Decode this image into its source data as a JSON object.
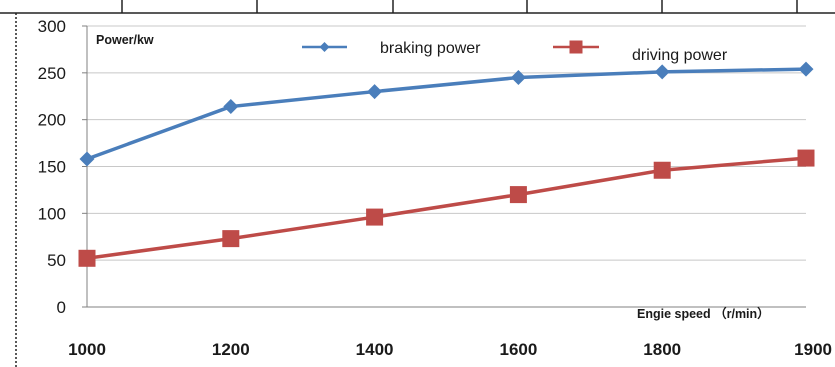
{
  "chart_data": {
    "type": "line",
    "categories": [
      "1000",
      "1200",
      "1400",
      "1600",
      "1800",
      "1900"
    ],
    "series": [
      {
        "name": "braking power",
        "values": [
          158,
          214,
          230,
          245,
          251,
          254
        ],
        "color": "#4a7ebb",
        "marker": "diamond"
      },
      {
        "name": "driving power",
        "values": [
          52,
          73,
          96,
          120,
          146,
          159
        ],
        "color": "#be4b48",
        "marker": "square"
      }
    ],
    "ylabel": "Power/kw",
    "xlabel": "Engie speed （r/min）",
    "ylim": [
      0,
      300
    ],
    "yticks": [
      0,
      50,
      100,
      150,
      200,
      250,
      300
    ],
    "grid": true,
    "legend": "top-right"
  }
}
